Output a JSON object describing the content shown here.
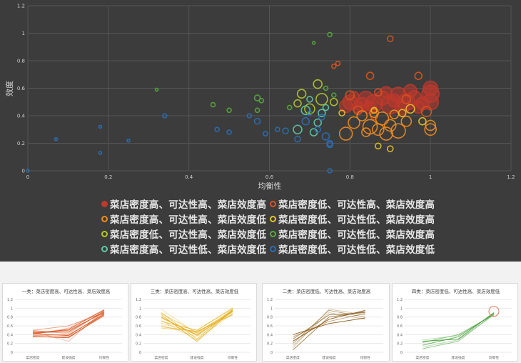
{
  "chart_data": [
    {
      "type": "scatter",
      "title": "",
      "xlabel": "均衡性",
      "ylabel": "效度",
      "xlim": [
        0,
        1.2
      ],
      "ylim": [
        0,
        1.2
      ],
      "xticks": [
        "0",
        "0.2",
        "0.4",
        "0.6",
        "0.8",
        "1",
        "1.2"
      ],
      "yticks": [
        "0",
        "0.2",
        "0.4",
        "0.6",
        "0.8",
        "1",
        "1.2"
      ],
      "grid": true,
      "legend_position": "bottom",
      "series": [
        {
          "name": "菜店密度高、可达性高、菜店效度高",
          "color": "#c0392b",
          "fill": "#c0392b",
          "points": [
            [
              0.79,
              0.47,
              9
            ],
            [
              0.8,
              0.5,
              10
            ],
            [
              0.82,
              0.46,
              8
            ],
            [
              0.84,
              0.52,
              11
            ],
            [
              0.86,
              0.49,
              12
            ],
            [
              0.88,
              0.53,
              10
            ],
            [
              0.9,
              0.48,
              13
            ],
            [
              0.92,
              0.55,
              11
            ],
            [
              0.94,
              0.5,
              12
            ],
            [
              0.96,
              0.53,
              10
            ],
            [
              0.98,
              0.49,
              9
            ],
            [
              1.0,
              0.56,
              12
            ],
            [
              1.0,
              0.6,
              10
            ],
            [
              0.85,
              0.46,
              9
            ],
            [
              0.93,
              0.46,
              10
            ],
            [
              0.97,
              0.46,
              8
            ],
            [
              0.81,
              0.54,
              7
            ],
            [
              0.89,
              0.57,
              8
            ],
            [
              0.95,
              0.58,
              9
            ],
            [
              1.0,
              0.5,
              11
            ],
            [
              0.83,
              0.48,
              10
            ],
            [
              0.91,
              0.51,
              9
            ]
          ]
        },
        {
          "name": "菜店密度低、可达性高、菜店效度高",
          "color": "#d9541e",
          "fill": "",
          "points": [
            [
              0.9,
              0.96,
              4
            ],
            [
              0.77,
              0.78,
              3
            ],
            [
              0.76,
              0.76,
              3
            ],
            [
              0.85,
              0.69,
              5
            ],
            [
              0.97,
              0.69,
              5
            ],
            [
              0.8,
              0.55,
              6
            ],
            [
              0.87,
              0.57,
              5
            ],
            [
              0.99,
              0.43,
              7
            ],
            [
              0.82,
              0.44,
              6
            ],
            [
              0.94,
              0.52,
              6
            ],
            [
              0.86,
              0.4,
              5
            ]
          ]
        },
        {
          "name": "菜店密度高、可达性高、菜店效度低",
          "color": "#f08c1e",
          "fill": "",
          "points": [
            [
              0.79,
              0.27,
              9
            ],
            [
              0.81,
              0.35,
              8
            ],
            [
              0.83,
              0.4,
              7
            ],
            [
              0.85,
              0.32,
              10
            ],
            [
              0.87,
              0.3,
              8
            ],
            [
              0.88,
              0.38,
              9
            ],
            [
              0.9,
              0.33,
              8
            ],
            [
              0.92,
              0.29,
              10
            ],
            [
              0.94,
              0.36,
              7
            ],
            [
              0.86,
              0.42,
              6
            ],
            [
              1.0,
              0.3,
              8
            ],
            [
              1.0,
              0.33,
              7
            ],
            [
              0.84,
              0.28,
              6
            ],
            [
              0.89,
              0.27,
              9
            ],
            [
              0.91,
              0.41,
              6
            ]
          ]
        },
        {
          "name": "菜店密度低、可达性低、菜店效度高",
          "color": "#e6c229",
          "fill": "",
          "points": [
            [
              0.9,
              0.16,
              4
            ],
            [
              0.87,
              0.18,
              4
            ],
            [
              0.93,
              0.42,
              5
            ],
            [
              0.95,
              0.45,
              6
            ],
            [
              0.98,
              0.36,
              5
            ],
            [
              0.86,
              0.44,
              4
            ],
            [
              0.78,
              0.42,
              4
            ]
          ]
        },
        {
          "name": "菜店密度低、可达性高、菜店效度低",
          "color": "#b5c62a",
          "fill": "",
          "points": [
            [
              0.68,
              0.56,
              6
            ],
            [
              0.7,
              0.45,
              7
            ],
            [
              0.73,
              0.52,
              8
            ],
            [
              0.72,
              0.63,
              6
            ],
            [
              0.76,
              0.5,
              5
            ],
            [
              0.67,
              0.49,
              5
            ]
          ]
        },
        {
          "name": "菜店密度低、可达性低、菜店效度高",
          "color": "#56a83e",
          "fill": "",
          "points": [
            [
              0.75,
              0.99,
              3
            ],
            [
              0.71,
              0.93,
              2
            ],
            [
              0.32,
              0.59,
              2
            ],
            [
              0.46,
              0.48,
              3
            ],
            [
              0.5,
              0.44,
              3
            ],
            [
              0.57,
              0.53,
              4
            ],
            [
              0.58,
              0.51,
              3
            ],
            [
              0.57,
              0.44,
              3
            ],
            [
              0.65,
              0.46,
              3
            ],
            [
              0.76,
              0.55,
              3
            ],
            [
              0.74,
              0.6,
              3
            ]
          ]
        },
        {
          "name": "菜店密度高、可达性低、菜店效度低",
          "color": "#5ec9a4",
          "fill": "",
          "points": [
            [
              0.67,
              0.3,
              6
            ],
            [
              0.69,
              0.44,
              6
            ],
            [
              0.72,
              0.35,
              5
            ],
            [
              0.73,
              0.42,
              5
            ],
            [
              0.74,
              0.46,
              4
            ],
            [
              0.7,
              0.52,
              4
            ],
            [
              0.71,
              0.28,
              5
            ]
          ]
        },
        {
          "name": "菜店密度低、可达性低、菜店效度低",
          "color": "#2a6fb5",
          "fill": "",
          "points": [
            [
              0.0,
              0.0,
              2
            ],
            [
              0.07,
              0.23,
              2
            ],
            [
              0.18,
              0.32,
              2
            ],
            [
              0.18,
              0.13,
              2
            ],
            [
              0.25,
              0.22,
              2
            ],
            [
              0.34,
              0.4,
              3
            ],
            [
              0.47,
              0.3,
              3
            ],
            [
              0.5,
              0.28,
              3
            ],
            [
              0.55,
              0.4,
              3
            ],
            [
              0.57,
              0.36,
              4
            ],
            [
              0.59,
              0.27,
              3
            ],
            [
              0.62,
              0.3,
              3
            ],
            [
              0.64,
              0.29,
              4
            ],
            [
              0.67,
              0.23,
              4
            ],
            [
              0.69,
              0.36,
              5
            ],
            [
              0.72,
              0.3,
              4
            ],
            [
              0.74,
              0.25,
              5
            ],
            [
              0.75,
              0.19,
              4
            ],
            [
              0.75,
              0.2,
              4
            ],
            [
              0.75,
              0.0,
              3
            ],
            [
              0.73,
              0.39,
              4
            ],
            [
              0.7,
              0.42,
              3
            ]
          ]
        }
      ]
    },
    {
      "type": "line",
      "title": "一类：菜店密度高、可达性高、菜店效度高",
      "categories": [
        "菜店密度",
        "建设强度",
        "均衡性"
      ],
      "ylim": [
        0,
        1.2
      ],
      "yticks": [
        "0",
        "0.2",
        "0.4",
        "0.6",
        "0.8",
        "1",
        "1.2"
      ],
      "color": "#d9541e",
      "lines": [
        [
          0.5,
          0.42,
          0.95
        ],
        [
          0.48,
          0.45,
          0.93
        ],
        [
          0.45,
          0.5,
          0.9
        ],
        [
          0.42,
          0.38,
          0.88
        ],
        [
          0.4,
          0.55,
          0.97
        ],
        [
          0.38,
          0.4,
          0.85
        ],
        [
          0.44,
          0.47,
          0.92
        ],
        [
          0.36,
          0.33,
          0.86
        ],
        [
          0.47,
          0.25,
          0.95
        ],
        [
          0.5,
          0.6,
          0.9
        ],
        [
          0.35,
          0.35,
          0.83
        ],
        [
          0.42,
          0.52,
          0.96
        ]
      ]
    },
    {
      "type": "line",
      "title": "三类：菜店密度高、可达性高、菜店效度低",
      "categories": [
        "菜店密度",
        "建设强度",
        "均衡性"
      ],
      "ylim": [
        0,
        1.2
      ],
      "yticks": [
        "0",
        "0.2",
        "0.4",
        "0.6",
        "0.8",
        "1",
        "1.2"
      ],
      "color": "#e6b01e",
      "lines": [
        [
          0.98,
          0.42,
          0.97
        ],
        [
          0.88,
          0.45,
          0.95
        ],
        [
          0.78,
          0.4,
          0.92
        ],
        [
          0.7,
          0.5,
          1.0
        ],
        [
          0.62,
          0.35,
          0.9
        ],
        [
          0.55,
          0.48,
          0.86
        ],
        [
          0.9,
          0.3,
          0.98
        ],
        [
          0.8,
          0.38,
          0.94
        ],
        [
          0.72,
          0.28,
          0.88
        ],
        [
          0.66,
          0.44,
          0.93
        ],
        [
          0.58,
          0.47,
          0.85
        ],
        [
          0.85,
          0.25,
          0.96
        ]
      ]
    },
    {
      "type": "line",
      "title": "二类：菜店密度低、可达性高、菜店效度高",
      "categories": [
        "菜店密度",
        "建设强度",
        "均衡性"
      ],
      "ylim": [
        0,
        1.2
      ],
      "yticks": [
        "0",
        "0.2",
        "0.4",
        "0.6",
        "0.8",
        "1",
        "1.2"
      ],
      "color": "#8a5a14",
      "lines": [
        [
          0.1,
          0.98,
          0.85
        ],
        [
          0.2,
          0.95,
          0.8
        ],
        [
          0.3,
          0.85,
          0.9
        ],
        [
          0.25,
          0.75,
          0.95
        ],
        [
          0.15,
          0.9,
          0.75
        ],
        [
          0.35,
          0.7,
          0.88
        ],
        [
          0.05,
          0.8,
          0.92
        ],
        [
          0.4,
          0.65,
          0.78
        ]
      ]
    },
    {
      "type": "line",
      "title": "四类：菜店密度低、可达性高、菜店效度低",
      "categories": [
        "菜店密度",
        "建设强度",
        "均衡性"
      ],
      "ylim": [
        0,
        1.2
      ],
      "yticks": [
        "0",
        "0.2",
        "0.4",
        "0.6",
        "0.8",
        "1",
        "1.2"
      ],
      "color": "#3e9a2e",
      "lines": [
        [
          0.28,
          0.38,
          0.86
        ],
        [
          0.22,
          0.4,
          0.85
        ],
        [
          0.16,
          0.35,
          0.88
        ],
        [
          0.25,
          0.3,
          0.9
        ],
        [
          0.12,
          0.28,
          0.84
        ],
        [
          0.08,
          0.25,
          0.87
        ]
      ]
    }
  ]
}
